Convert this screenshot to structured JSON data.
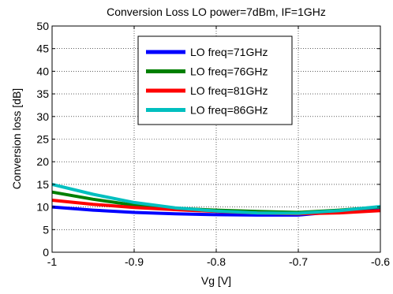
{
  "chart_data": {
    "type": "line",
    "title": "Conversion Loss LO power=7dBm, IF=1GHz",
    "xlabel": "Vg [V]",
    "ylabel": "Conversion loss [dB]",
    "xlim": [
      -1,
      -0.6
    ],
    "ylim": [
      0,
      50
    ],
    "x_ticks": [
      -1,
      -0.9,
      -0.8,
      -0.7,
      -0.6
    ],
    "x_tick_labels": [
      "-1",
      "-0.9",
      "-0.8",
      "-0.7",
      "-0.6"
    ],
    "y_ticks": [
      0,
      5,
      10,
      15,
      20,
      25,
      30,
      35,
      40,
      45,
      50
    ],
    "y_tick_labels": [
      "0",
      "5",
      "10",
      "15",
      "20",
      "25",
      "30",
      "35",
      "40",
      "45",
      "50"
    ],
    "grid": true,
    "legend_position": "top-right",
    "x": [
      -1,
      -0.95,
      -0.9,
      -0.85,
      -0.8,
      -0.75,
      -0.7,
      -0.65,
      -0.6
    ],
    "series": [
      {
        "name": "LO freq=71GHz",
        "color": "#0000ff",
        "values": [
          10.0,
          9.3,
          8.8,
          8.5,
          8.3,
          8.2,
          8.2,
          9.0,
          9.9
        ]
      },
      {
        "name": "LO freq=76GHz",
        "color": "#007f00",
        "values": [
          13.3,
          11.7,
          10.4,
          9.7,
          9.3,
          9.0,
          8.8,
          9.3,
          10.0
        ]
      },
      {
        "name": "LO freq=81GHz",
        "color": "#ff0000",
        "values": [
          11.5,
          10.6,
          9.9,
          9.4,
          9.0,
          8.7,
          8.5,
          8.7,
          9.2
        ]
      },
      {
        "name": "LO freq=86GHz",
        "color": "#00bfbf",
        "values": [
          15.0,
          12.8,
          11.0,
          9.8,
          9.1,
          8.7,
          8.6,
          9.2,
          10.1
        ]
      }
    ]
  }
}
